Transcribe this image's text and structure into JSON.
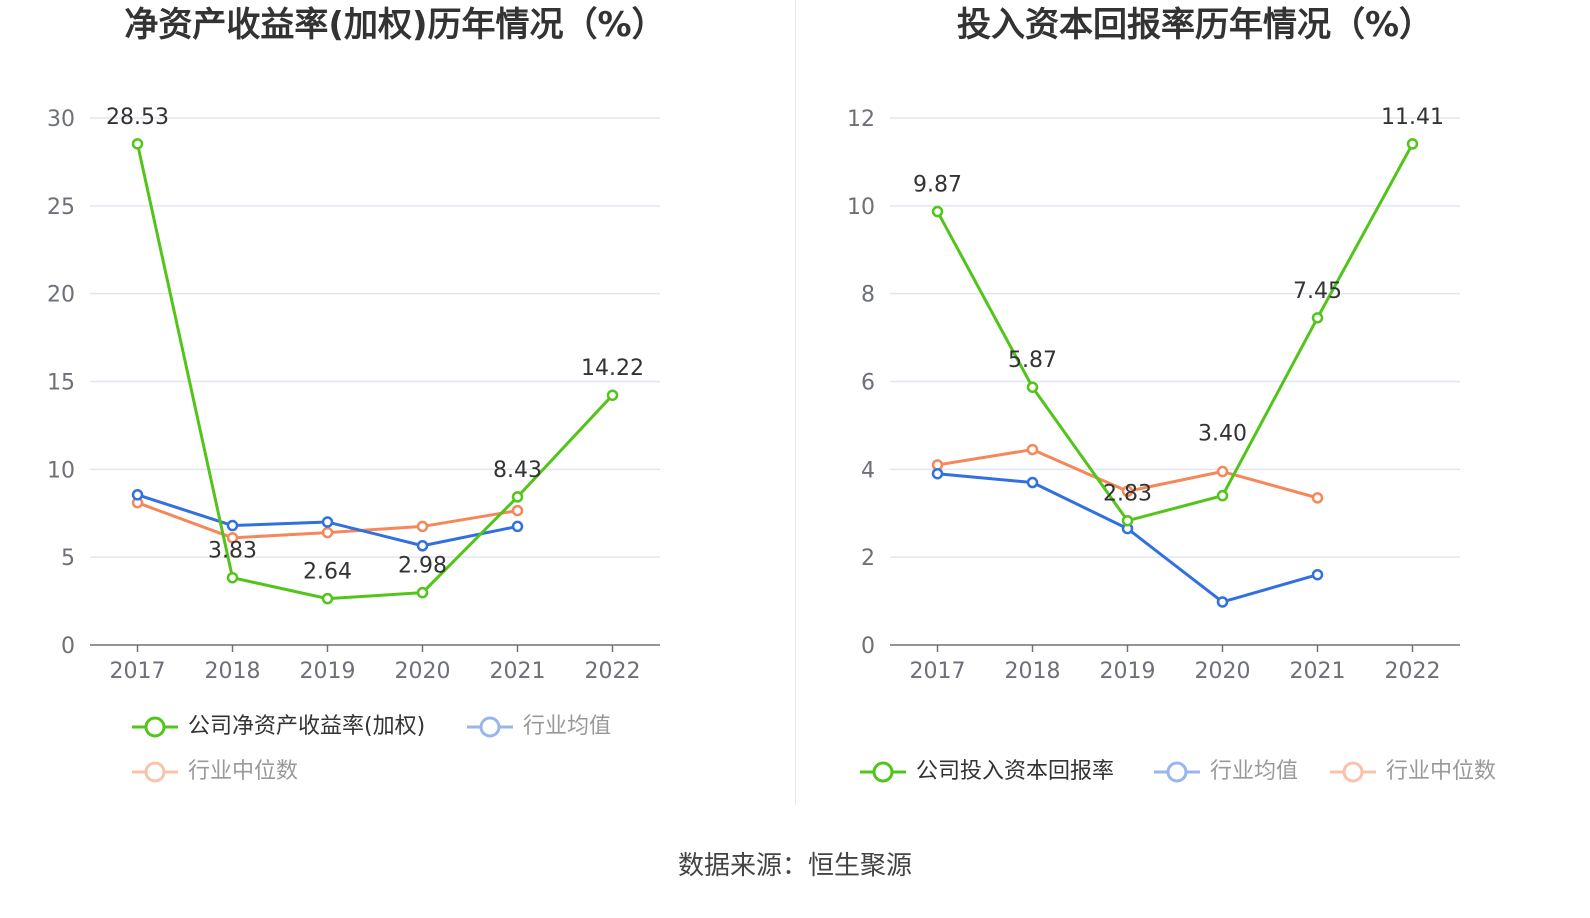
{
  "charts": [
    {
      "title": "净资产收益率(加权)历年情况（%）",
      "legend": [
        "公司净资产收益率(加权)",
        "行业均值",
        "行业中位数"
      ]
    },
    {
      "title": "投入资本回报率历年情况（%）",
      "legend": [
        "公司投入资本回报率",
        "行业均值",
        "行业中位数"
      ]
    }
  ],
  "source": "数据来源：恒生聚源",
  "colors": {
    "company": "#52c41a",
    "mean": "#3270e0",
    "median": "#f5875a",
    "grid": "#e0e6f1",
    "axis": "#6e7079"
  },
  "chart_data": [
    {
      "type": "line",
      "title": "净资产收益率(加权)历年情况（%）",
      "categories": [
        "2017",
        "2018",
        "2019",
        "2020",
        "2021",
        "2022"
      ],
      "yticks": [
        "0",
        "5",
        "10",
        "15",
        "20",
        "25",
        "30"
      ],
      "ylim": [
        0,
        30
      ],
      "grid": true,
      "legend_position": "bottom",
      "series": [
        {
          "name": "公司净资产收益率(加权)",
          "values": [
            28.53,
            3.83,
            2.64,
            2.98,
            8.43,
            14.22
          ],
          "labels": [
            "28.53",
            "3.83",
            "2.64",
            "2.98",
            "8.43",
            "14.22"
          ]
        },
        {
          "name": "行业均值",
          "values": [
            8.55,
            6.8,
            7.0,
            5.65,
            6.75,
            null
          ]
        },
        {
          "name": "行业中位数",
          "values": [
            8.1,
            6.1,
            6.4,
            6.75,
            7.65,
            null
          ]
        }
      ]
    },
    {
      "type": "line",
      "title": "投入资本回报率历年情况（%）",
      "categories": [
        "2017",
        "2018",
        "2019",
        "2020",
        "2021",
        "2022"
      ],
      "yticks": [
        "0",
        "2",
        "4",
        "6",
        "8",
        "10",
        "12"
      ],
      "ylim": [
        0,
        12
      ],
      "grid": true,
      "legend_position": "bottom",
      "series": [
        {
          "name": "公司投入资本回报率",
          "values": [
            9.87,
            5.87,
            2.83,
            3.4,
            7.45,
            11.41
          ],
          "labels": [
            "9.87",
            "5.87",
            "2.83",
            "3.40",
            "7.45",
            "11.41"
          ]
        },
        {
          "name": "行业均值",
          "values": [
            3.9,
            3.7,
            2.65,
            0.98,
            1.6,
            null
          ]
        },
        {
          "name": "行业中位数",
          "values": [
            4.1,
            4.45,
            3.5,
            3.95,
            3.35,
            null
          ]
        }
      ]
    }
  ]
}
